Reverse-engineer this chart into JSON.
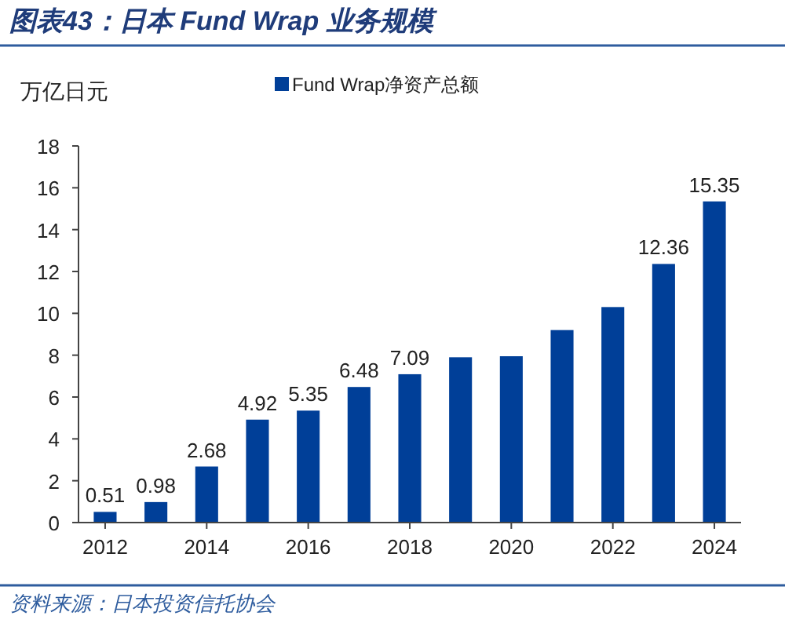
{
  "chart_data": {
    "type": "bar",
    "title": "图表43：日本 Fund Wrap 业务规模",
    "ylabel": "万亿日元",
    "categories": [
      "2012",
      null,
      "2014",
      null,
      "2016",
      null,
      "2018",
      null,
      "2020",
      null,
      "2022",
      null,
      "2024"
    ],
    "series": [
      {
        "name": "Fund Wrap净资产总额",
        "color": "#003f98",
        "values": [
          0.51,
          0.98,
          2.68,
          4.92,
          5.35,
          6.48,
          7.09,
          7.9,
          7.95,
          9.2,
          10.3,
          12.36,
          15.35
        ],
        "value_labels": [
          "0.51",
          "0.98",
          "2.68",
          "4.92",
          "5.35",
          "6.48",
          "7.09",
          null,
          null,
          null,
          null,
          "12.36",
          "15.35"
        ]
      }
    ],
    "ylim": [
      0,
      18
    ],
    "yticks": [
      0,
      2,
      4,
      6,
      8,
      10,
      12,
      14,
      16,
      18
    ],
    "legend": "top",
    "grid": false,
    "annotations": [
      "资料来源：日本投资信托协会"
    ]
  }
}
